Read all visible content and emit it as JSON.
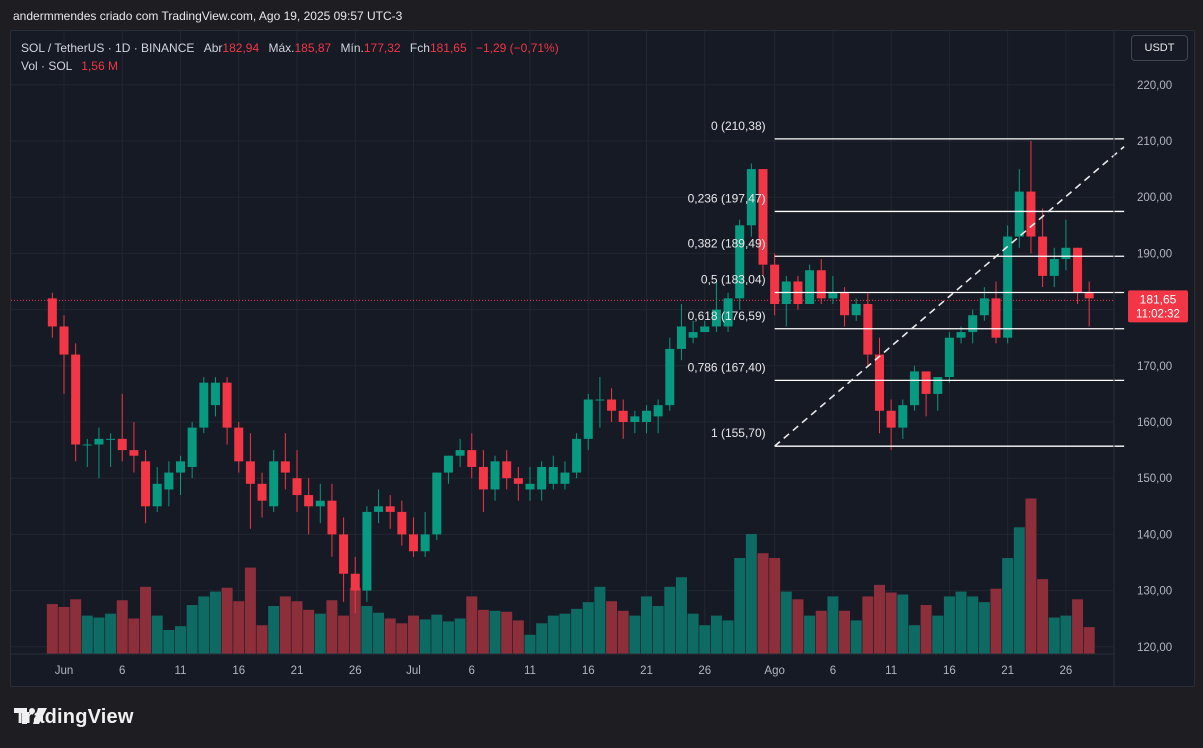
{
  "header": {
    "attribution": "andermmendes criado com TradingView.com, Ago 19, 2025 09:57 UTC-3"
  },
  "legend": {
    "symbol": "SOL / TetherUS · 1D · BINANCE",
    "open_label": "Abr",
    "open": "182,94",
    "high_label": "Máx.",
    "high": "185,87",
    "low_label": "Mín.",
    "low": "177,32",
    "close_label": "Fch",
    "close": "181,65",
    "change": "−1,29 (−0,71%)",
    "vol_label": "Vol · SOL",
    "vol": "1,56 M"
  },
  "currency_button": "USDT",
  "footer": {
    "brand": "TradingView"
  },
  "colors": {
    "up": "#089981",
    "down": "#f23645",
    "bg": "#161a25",
    "grid": "#222631",
    "fib": "#ffffff"
  },
  "chart_data": {
    "type": "candlestick",
    "y_ticks": [
      "220,00",
      "210,00",
      "200,00",
      "190,00",
      "180,00",
      "170,00",
      "160,00",
      "150,00",
      "140,00",
      "130,00",
      "120,00"
    ],
    "y_tick_values": [
      220,
      210,
      200,
      190,
      180,
      170,
      160,
      150,
      140,
      130,
      120
    ],
    "x_ticks": [
      {
        "label": "Jun",
        "date": "2025-06-01"
      },
      {
        "label": "6",
        "date": "2025-06-06"
      },
      {
        "label": "11",
        "date": "2025-06-11"
      },
      {
        "label": "16",
        "date": "2025-06-16"
      },
      {
        "label": "21",
        "date": "2025-06-21"
      },
      {
        "label": "26",
        "date": "2025-06-26"
      },
      {
        "label": "Jul",
        "date": "2025-07-01"
      },
      {
        "label": "6",
        "date": "2025-07-06"
      },
      {
        "label": "11",
        "date": "2025-07-11"
      },
      {
        "label": "16",
        "date": "2025-07-16"
      },
      {
        "label": "21",
        "date": "2025-07-21"
      },
      {
        "label": "26",
        "date": "2025-07-26"
      },
      {
        "label": "Ago",
        "date": "2025-08-01"
      },
      {
        "label": "6",
        "date": "2025-08-06"
      },
      {
        "label": "11",
        "date": "2025-08-11"
      },
      {
        "label": "16",
        "date": "2025-08-16"
      },
      {
        "label": "21",
        "date": "2025-08-21"
      },
      {
        "label": "26",
        "date": "2025-08-26"
      }
    ],
    "last_price": {
      "value": 181.65,
      "label": "181,65",
      "countdown": "11:02:32"
    },
    "fib": {
      "start_date": "2025-08-01",
      "end_date": "2025-08-31",
      "levels": [
        {
          "label": "0 (210,38)",
          "value": 210.38
        },
        {
          "label": "0,236 (197,47)",
          "value": 197.47
        },
        {
          "label": "0,382 (189,49)",
          "value": 189.49
        },
        {
          "label": "0,5 (183,04)",
          "value": 183.04
        },
        {
          "label": "0,618 (176,59)",
          "value": 176.59
        },
        {
          "label": "0,786 (167,40)",
          "value": 167.4
        },
        {
          "label": "1 (155,70)",
          "value": 155.7
        }
      ]
    },
    "trendline": {
      "from": {
        "date": "2025-08-01",
        "value": 155.7
      },
      "to": {
        "date": "2025-08-31",
        "value": 209.0
      }
    },
    "candles": [
      {
        "date": "2025-05-31",
        "o": 182,
        "h": 183,
        "l": 175,
        "c": 177,
        "v": 5.2
      },
      {
        "date": "2025-06-01",
        "o": 177,
        "h": 179,
        "l": 165,
        "c": 172,
        "v": 4.9
      },
      {
        "date": "2025-06-02",
        "o": 172,
        "h": 174,
        "l": 153,
        "c": 156,
        "v": 5.7
      },
      {
        "date": "2025-06-03",
        "o": 156,
        "h": 157,
        "l": 152,
        "c": 156,
        "v": 4.0
      },
      {
        "date": "2025-06-04",
        "o": 156,
        "h": 159,
        "l": 150,
        "c": 157,
        "v": 3.8
      },
      {
        "date": "2025-06-05",
        "o": 157,
        "h": 158,
        "l": 152,
        "c": 157,
        "v": 4.2
      },
      {
        "date": "2025-06-06",
        "o": 157,
        "h": 165,
        "l": 153,
        "c": 155,
        "v": 5.6
      },
      {
        "date": "2025-06-07",
        "o": 155,
        "h": 160,
        "l": 151,
        "c": 154,
        "v": 3.7
      },
      {
        "date": "2025-06-08",
        "o": 153,
        "h": 155,
        "l": 142,
        "c": 145,
        "v": 7.0
      },
      {
        "date": "2025-06-09",
        "o": 145,
        "h": 152,
        "l": 144,
        "c": 149,
        "v": 4.0
      },
      {
        "date": "2025-06-10",
        "o": 148,
        "h": 153,
        "l": 145,
        "c": 151,
        "v": 2.5
      },
      {
        "date": "2025-06-11",
        "o": 151,
        "h": 154,
        "l": 147,
        "c": 153,
        "v": 2.9
      },
      {
        "date": "2025-06-12",
        "o": 152,
        "h": 160,
        "l": 150,
        "c": 159,
        "v": 5.1
      },
      {
        "date": "2025-06-13",
        "o": 159,
        "h": 168,
        "l": 158,
        "c": 167,
        "v": 6.0
      },
      {
        "date": "2025-06-14",
        "o": 163,
        "h": 168,
        "l": 161,
        "c": 167,
        "v": 6.5
      },
      {
        "date": "2025-06-15",
        "o": 167,
        "h": 168,
        "l": 156,
        "c": 159,
        "v": 6.9
      },
      {
        "date": "2025-06-16",
        "o": 159,
        "h": 160,
        "l": 151,
        "c": 153,
        "v": 5.5
      },
      {
        "date": "2025-06-17",
        "o": 153,
        "h": 158,
        "l": 141,
        "c": 149,
        "v": 9.0
      },
      {
        "date": "2025-06-18",
        "o": 149,
        "h": 151,
        "l": 143,
        "c": 146,
        "v": 3.0
      },
      {
        "date": "2025-06-19",
        "o": 145,
        "h": 155,
        "l": 144,
        "c": 153,
        "v": 5.0
      },
      {
        "date": "2025-06-20",
        "o": 153,
        "h": 158,
        "l": 148,
        "c": 151,
        "v": 6.0
      },
      {
        "date": "2025-06-21",
        "o": 150,
        "h": 155,
        "l": 144,
        "c": 147,
        "v": 5.5
      },
      {
        "date": "2025-06-22",
        "o": 147,
        "h": 150,
        "l": 140,
        "c": 145,
        "v": 4.6
      },
      {
        "date": "2025-06-23",
        "o": 145,
        "h": 149,
        "l": 142,
        "c": 146,
        "v": 4.2
      },
      {
        "date": "2025-06-24",
        "o": 146,
        "h": 149,
        "l": 136,
        "c": 140,
        "v": 5.6
      },
      {
        "date": "2025-06-25",
        "o": 140,
        "h": 143,
        "l": 128,
        "c": 133,
        "v": 4.0
      },
      {
        "date": "2025-06-26",
        "o": 133,
        "h": 136,
        "l": 126,
        "c": 130,
        "v": 6.9
      },
      {
        "date": "2025-06-27",
        "o": 130,
        "h": 145,
        "l": 128,
        "c": 144,
        "v": 5.0
      },
      {
        "date": "2025-06-28",
        "o": 144,
        "h": 148,
        "l": 142,
        "c": 145,
        "v": 4.3
      },
      {
        "date": "2025-06-29",
        "o": 145,
        "h": 147,
        "l": 141,
        "c": 144,
        "v": 3.7
      },
      {
        "date": "2025-06-30",
        "o": 144,
        "h": 146,
        "l": 138,
        "c": 140,
        "v": 3.2
      },
      {
        "date": "2025-07-01",
        "o": 140,
        "h": 143,
        "l": 136,
        "c": 137,
        "v": 4.0
      },
      {
        "date": "2025-07-02",
        "o": 137,
        "h": 144,
        "l": 136,
        "c": 140,
        "v": 3.6
      },
      {
        "date": "2025-07-03",
        "o": 140,
        "h": 151,
        "l": 139,
        "c": 151,
        "v": 4.1
      },
      {
        "date": "2025-07-04",
        "o": 151,
        "h": 154,
        "l": 149,
        "c": 154,
        "v": 3.4
      },
      {
        "date": "2025-07-05",
        "o": 154,
        "h": 157,
        "l": 152,
        "c": 155,
        "v": 3.7
      },
      {
        "date": "2025-07-06",
        "o": 155,
        "h": 158,
        "l": 150,
        "c": 152,
        "v": 6.0
      },
      {
        "date": "2025-07-07",
        "o": 152,
        "h": 155,
        "l": 144,
        "c": 148,
        "v": 4.6
      },
      {
        "date": "2025-07-08",
        "o": 148,
        "h": 154,
        "l": 146,
        "c": 153,
        "v": 4.5
      },
      {
        "date": "2025-07-09",
        "o": 153,
        "h": 155,
        "l": 148,
        "c": 150,
        "v": 4.4
      },
      {
        "date": "2025-07-10",
        "o": 150,
        "h": 152,
        "l": 146,
        "c": 149,
        "v": 3.5
      },
      {
        "date": "2025-07-11",
        "o": 148,
        "h": 152,
        "l": 146,
        "c": 149,
        "v": 2.0
      },
      {
        "date": "2025-07-12",
        "o": 148,
        "h": 153,
        "l": 146,
        "c": 152,
        "v": 3.2
      },
      {
        "date": "2025-07-13",
        "o": 149,
        "h": 154,
        "l": 148,
        "c": 152,
        "v": 4.0
      },
      {
        "date": "2025-07-14",
        "o": 149,
        "h": 153,
        "l": 148,
        "c": 151,
        "v": 4.2
      },
      {
        "date": "2025-07-15",
        "o": 151,
        "h": 158,
        "l": 150,
        "c": 157,
        "v": 4.7
      },
      {
        "date": "2025-07-16",
        "o": 157,
        "h": 165,
        "l": 155,
        "c": 164,
        "v": 5.4
      },
      {
        "date": "2025-07-17",
        "o": 164,
        "h": 168,
        "l": 159,
        "c": 164,
        "v": 7.0
      },
      {
        "date": "2025-07-18",
        "o": 164,
        "h": 166,
        "l": 160,
        "c": 162,
        "v": 5.5
      },
      {
        "date": "2025-07-19",
        "o": 162,
        "h": 164,
        "l": 157,
        "c": 160,
        "v": 4.5
      },
      {
        "date": "2025-07-20",
        "o": 160,
        "h": 162,
        "l": 158,
        "c": 161,
        "v": 4.0
      },
      {
        "date": "2025-07-21",
        "o": 160,
        "h": 163,
        "l": 158,
        "c": 162,
        "v": 6.0
      },
      {
        "date": "2025-07-22",
        "o": 161,
        "h": 164,
        "l": 158,
        "c": 163,
        "v": 5.0
      },
      {
        "date": "2025-07-23",
        "o": 163,
        "h": 175,
        "l": 162,
        "c": 173,
        "v": 7.0
      },
      {
        "date": "2025-07-24",
        "o": 173,
        "h": 181,
        "l": 171,
        "c": 177,
        "v": 8.0
      },
      {
        "date": "2025-07-25",
        "o": 175,
        "h": 178,
        "l": 174,
        "c": 176,
        "v": 4.2
      },
      {
        "date": "2025-07-26",
        "o": 176,
        "h": 178,
        "l": 176,
        "c": 177,
        "v": 3.0
      },
      {
        "date": "2025-07-27",
        "o": 177,
        "h": 185,
        "l": 176,
        "c": 180,
        "v": 4.0
      },
      {
        "date": "2025-07-28",
        "o": 177,
        "h": 183,
        "l": 176,
        "c": 182,
        "v": 3.5
      },
      {
        "date": "2025-07-29",
        "o": 182,
        "h": 196,
        "l": 180,
        "c": 195,
        "v": 10.0
      },
      {
        "date": "2025-07-30",
        "o": 195,
        "h": 206,
        "l": 193,
        "c": 205,
        "v": 12.5
      },
      {
        "date": "2025-07-31",
        "o": 205,
        "h": 205,
        "l": 186,
        "c": 188,
        "v": 10.5
      },
      {
        "date": "2025-08-01",
        "o": 188,
        "h": 190,
        "l": 179,
        "c": 181,
        "v": 10.0
      },
      {
        "date": "2025-08-02",
        "o": 181,
        "h": 186,
        "l": 177,
        "c": 185,
        "v": 6.5
      },
      {
        "date": "2025-08-03",
        "o": 185,
        "h": 186,
        "l": 180,
        "c": 181,
        "v": 5.7
      },
      {
        "date": "2025-08-04",
        "o": 181,
        "h": 188,
        "l": 181,
        "c": 187,
        "v": 4.0
      },
      {
        "date": "2025-08-05",
        "o": 187,
        "h": 189,
        "l": 181,
        "c": 182,
        "v": 4.5
      },
      {
        "date": "2025-08-06",
        "o": 182,
        "h": 186,
        "l": 181,
        "c": 183,
        "v": 6.0
      },
      {
        "date": "2025-08-07",
        "o": 183,
        "h": 184,
        "l": 177,
        "c": 179,
        "v": 4.5
      },
      {
        "date": "2025-08-08",
        "o": 179,
        "h": 182,
        "l": 178,
        "c": 181,
        "v": 3.5
      },
      {
        "date": "2025-08-09",
        "o": 181,
        "h": 183,
        "l": 170,
        "c": 172,
        "v": 6.0
      },
      {
        "date": "2025-08-10",
        "o": 172,
        "h": 175,
        "l": 158,
        "c": 162,
        "v": 7.2
      },
      {
        "date": "2025-08-11",
        "o": 162,
        "h": 164,
        "l": 155,
        "c": 159,
        "v": 6.4
      },
      {
        "date": "2025-08-12",
        "o": 159,
        "h": 164,
        "l": 157,
        "c": 163,
        "v": 6.2
      },
      {
        "date": "2025-08-13",
        "o": 163,
        "h": 170,
        "l": 162,
        "c": 169,
        "v": 3.0
      },
      {
        "date": "2025-08-14",
        "o": 169,
        "h": 169,
        "l": 161,
        "c": 165,
        "v": 5.1
      },
      {
        "date": "2025-08-15",
        "o": 165,
        "h": 168,
        "l": 162,
        "c": 168,
        "v": 4.0
      },
      {
        "date": "2025-08-16",
        "o": 168,
        "h": 176,
        "l": 167,
        "c": 175,
        "v": 6.0
      },
      {
        "date": "2025-08-17",
        "o": 175,
        "h": 177,
        "l": 174,
        "c": 176,
        "v": 6.5
      },
      {
        "date": "2025-08-18",
        "o": 176,
        "h": 180,
        "l": 174,
        "c": 179,
        "v": 6.0
      },
      {
        "date": "2025-08-19",
        "o": 179,
        "h": 184,
        "l": 178,
        "c": 182,
        "v": 5.4
      },
      {
        "date": "2025-08-20",
        "o": 182,
        "h": 185,
        "l": 174,
        "c": 175,
        "v": 6.8
      },
      {
        "date": "2025-08-21",
        "o": 175,
        "h": 195,
        "l": 174,
        "c": 193,
        "v": 10.0
      },
      {
        "date": "2025-08-22",
        "o": 193,
        "h": 205,
        "l": 191,
        "c": 201,
        "v": 13.2
      },
      {
        "date": "2025-08-23",
        "o": 201,
        "h": 210,
        "l": 190,
        "c": 193,
        "v": 16.2
      },
      {
        "date": "2025-08-24",
        "o": 193,
        "h": 198,
        "l": 184,
        "c": 186,
        "v": 7.8
      },
      {
        "date": "2025-08-25",
        "o": 186,
        "h": 191,
        "l": 184,
        "c": 189,
        "v": 3.8
      },
      {
        "date": "2025-08-26",
        "o": 189,
        "h": 196,
        "l": 187,
        "c": 191,
        "v": 4.0
      },
      {
        "date": "2025-08-27",
        "o": 191,
        "h": 191,
        "l": 181,
        "c": 183,
        "v": 5.7
      },
      {
        "date": "2025-08-28",
        "o": 183,
        "h": 185,
        "l": 177,
        "c": 182,
        "v": 2.8
      }
    ]
  }
}
